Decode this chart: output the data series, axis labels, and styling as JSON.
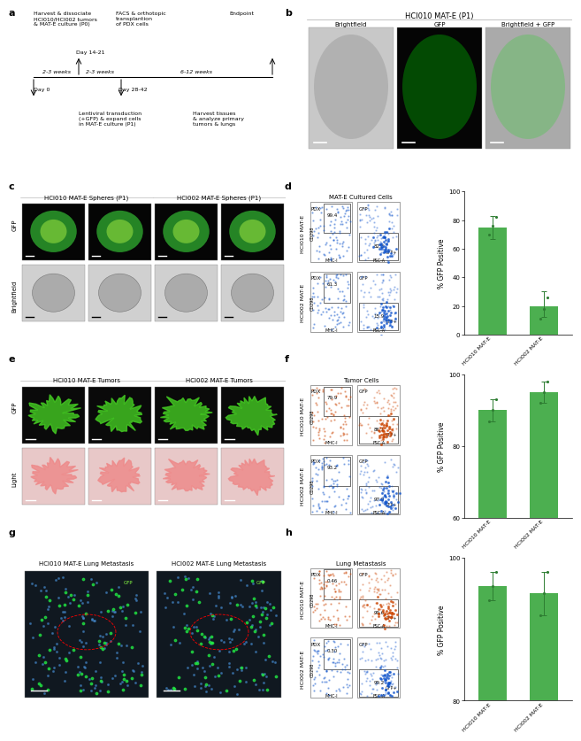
{
  "panel_d_bar": {
    "categories": [
      "HCI010 MAT-E",
      "HCI002 MAT-E"
    ],
    "values": [
      75,
      20
    ],
    "errors_upper": [
      8,
      10
    ],
    "errors_lower": [
      8,
      8
    ],
    "ylim": [
      0,
      100
    ],
    "yticks": [
      0,
      20,
      40,
      60,
      80,
      100
    ],
    "ylabel": "% GFP Positive",
    "bar_color": "#4caf50",
    "error_color": "#2e7d32",
    "dot_values_0": [
      70,
      76,
      82
    ],
    "dot_values_1": [
      11,
      18,
      26
    ]
  },
  "panel_f_bar": {
    "categories": [
      "HCI010 MAT-E",
      "HCI002 MAT-E"
    ],
    "values": [
      90,
      95
    ],
    "errors_upper": [
      3,
      3
    ],
    "errors_lower": [
      3,
      3
    ],
    "ylim": [
      60,
      100
    ],
    "yticks": [
      60,
      80,
      100
    ],
    "ylabel": "% GFP Positive",
    "bar_color": "#4caf50",
    "error_color": "#2e7d32",
    "dot_values_0": [
      87,
      90,
      93
    ],
    "dot_values_1": [
      92,
      95,
      98
    ]
  },
  "panel_h_bar": {
    "categories": [
      "HCI010 MAT-E",
      "HCI002 MAT-E"
    ],
    "values": [
      96,
      95
    ],
    "errors_upper": [
      2,
      3
    ],
    "errors_lower": [
      2,
      3
    ],
    "ylim": [
      80,
      100
    ],
    "yticks": [
      80,
      100
    ],
    "ylabel": "% GFP Positive",
    "bar_color": "#4caf50",
    "error_color": "#2e7d32",
    "dot_values_0": [
      94,
      96,
      98
    ],
    "dot_values_1": [
      92,
      95,
      98
    ]
  },
  "figure_width": 6.5,
  "figure_height": 7.98,
  "background_color": "#ffffff",
  "panel_label_fontsize": 8,
  "axis_fontsize": 5.5,
  "tick_fontsize": 5,
  "xlabel_fontsize": 4.5,
  "title_fontsize": 6,
  "annotation_fontsize": 5
}
